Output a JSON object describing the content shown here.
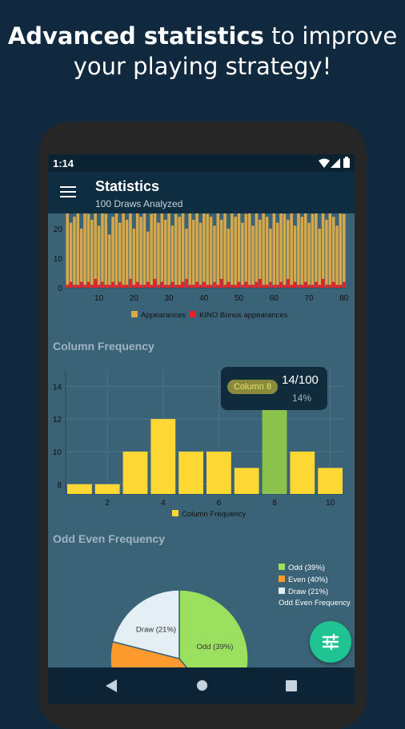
{
  "promo": {
    "bold": "Advanced statistics",
    "rest": " to improve",
    "line2": "your playing strategy!"
  },
  "status": {
    "time": "1:14"
  },
  "appbar": {
    "title": "Statistics",
    "subtitle": "100 Draws Analyzed"
  },
  "sections": {
    "column": "Column Frequency",
    "oddeven": "Odd Even Frequency"
  },
  "colors": {
    "appearances": "#d6a84a",
    "bonus": "#e8202a",
    "column": "#fdd835",
    "highlight": "#8bc34a",
    "odd": "#9ce05f",
    "even": "#ff9a2e",
    "draw": "#e3eef5"
  },
  "chart_data": [
    {
      "type": "bar",
      "x": [
        1,
        2,
        3,
        4,
        5,
        6,
        7,
        8,
        9,
        10,
        11,
        12,
        13,
        14,
        15,
        16,
        17,
        18,
        19,
        20,
        21,
        22,
        23,
        24,
        25,
        26,
        27,
        28,
        29,
        30,
        31,
        32,
        33,
        34,
        35,
        36,
        37,
        38,
        39,
        40,
        41,
        42,
        43,
        44,
        45,
        46,
        47,
        48,
        49,
        50,
        51,
        52,
        53,
        54,
        55,
        56,
        57,
        58,
        59,
        60,
        61,
        62,
        63,
        64,
        65,
        66,
        67,
        68,
        69,
        70,
        71,
        72,
        73,
        74,
        75,
        76,
        77,
        78,
        79,
        80
      ],
      "series": [
        {
          "name": "Appearances",
          "values": [
            29,
            22,
            24,
            26,
            20,
            28,
            25,
            23,
            27,
            21,
            29,
            25,
            18,
            24,
            27,
            22,
            30,
            23,
            26,
            20,
            28,
            24,
            27,
            19,
            25,
            29,
            22,
            26,
            23,
            28,
            21,
            25,
            24,
            27,
            20,
            29,
            23,
            26,
            22,
            28,
            25,
            24,
            21,
            27,
            23,
            29,
            20,
            26,
            24,
            28,
            22,
            25,
            27,
            21,
            29,
            23,
            26,
            24,
            20,
            28,
            22,
            27,
            25,
            23,
            29,
            21,
            26,
            24,
            28,
            22,
            25,
            27,
            20,
            29,
            23,
            26,
            24,
            21,
            28,
            25
          ]
        },
        {
          "name": "KINO Bonus appearances",
          "values": [
            1,
            2,
            1,
            1,
            2,
            1,
            2,
            1,
            3,
            1,
            2,
            1,
            1,
            2,
            1,
            2,
            1,
            1,
            3,
            1,
            2,
            1,
            1,
            2,
            1,
            3,
            1,
            2,
            1,
            1,
            2,
            1,
            1,
            2,
            3,
            1,
            1,
            2,
            1,
            2,
            1,
            1,
            2,
            1,
            3,
            1,
            2,
            1,
            1,
            2,
            1,
            2,
            1,
            1,
            2,
            3,
            1,
            1,
            2,
            1,
            1,
            2,
            1,
            3,
            1,
            2,
            1,
            1,
            2,
            1,
            1,
            2,
            1,
            3,
            1,
            1,
            2,
            1,
            1,
            2
          ]
        }
      ],
      "xticks": [
        10,
        20,
        30,
        40,
        50,
        60,
        70,
        80
      ],
      "yticks": [
        0,
        10,
        20
      ],
      "ylim": [
        0,
        30
      ]
    },
    {
      "type": "bar",
      "title": "Column Frequency",
      "categories": [
        1,
        2,
        3,
        4,
        5,
        6,
        7,
        8,
        9,
        10
      ],
      "series": [
        {
          "name": "Column Frequency",
          "values": [
            8,
            8,
            10,
            12,
            10,
            10,
            9,
            14,
            10,
            9
          ]
        }
      ],
      "xticks": [
        2,
        4,
        6,
        8,
        10
      ],
      "yticks": [
        8,
        10,
        12,
        14
      ],
      "ylim": [
        7.4,
        15
      ],
      "highlighted": {
        "label": "Column 8",
        "value": "14/100",
        "percent": "14%"
      }
    },
    {
      "type": "pie",
      "title": "Odd Even Frequency",
      "slices": [
        {
          "name": "Odd (39%)",
          "value": 39
        },
        {
          "name": "Even (40%)",
          "value": 40
        },
        {
          "name": "Draw (21%)",
          "value": 21
        }
      ],
      "legend_title": "Odd Even Frequency",
      "legend_position": "right"
    }
  ]
}
